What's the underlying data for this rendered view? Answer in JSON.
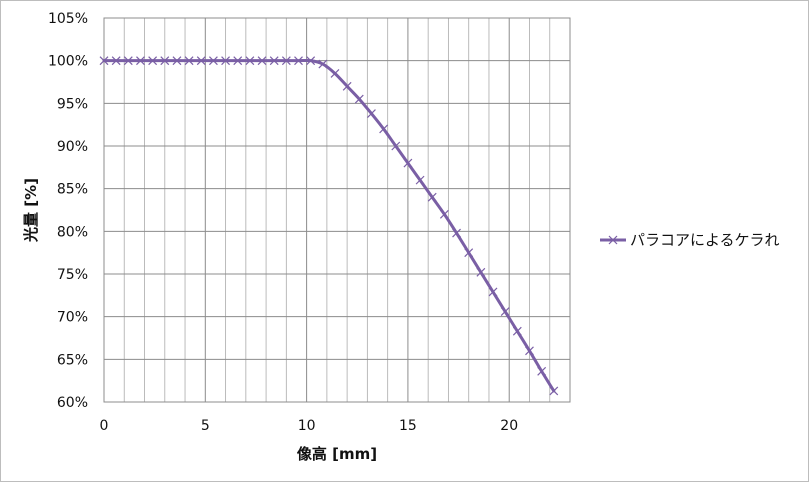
{
  "chart_data": {
    "type": "line",
    "title": "",
    "xlabel": "像高 [mm]",
    "ylabel": "光量 [%]",
    "xlim": [
      0,
      23
    ],
    "ylim": [
      60,
      105
    ],
    "x_ticks": [
      0,
      5,
      10,
      15,
      20
    ],
    "x_tick_labels": [
      "0",
      "5",
      "10",
      "15",
      "20"
    ],
    "y_ticks": [
      60,
      65,
      70,
      75,
      80,
      85,
      90,
      95,
      100,
      105
    ],
    "y_tick_labels": [
      "60%",
      "65%",
      "70%",
      "75%",
      "80%",
      "85%",
      "90%",
      "95%",
      "100%",
      "105%"
    ],
    "x_minor_step": 1,
    "grid": true,
    "legend_position": "right",
    "series": [
      {
        "name": "パラコアによるケラれ",
        "color": "#7a5fa5",
        "marker": "x",
        "x": [
          0,
          0.6,
          1.2,
          1.8,
          2.4,
          3.0,
          3.6,
          4.2,
          4.8,
          5.4,
          6.0,
          6.6,
          7.2,
          7.8,
          8.4,
          9.0,
          9.6,
          10.2,
          10.8,
          11.4,
          12.0,
          12.6,
          13.2,
          13.8,
          14.4,
          15.0,
          15.6,
          16.2,
          16.8,
          17.4,
          18.0,
          18.6,
          19.2,
          19.8,
          20.4,
          21.0,
          21.6,
          22.2
        ],
        "y": [
          100,
          100,
          100,
          100,
          100,
          100,
          100,
          100,
          100,
          100,
          100,
          100,
          100,
          100,
          100,
          100,
          100,
          100,
          99.6,
          98.5,
          97.0,
          95.5,
          93.8,
          92.0,
          90.0,
          88.0,
          86.0,
          84.0,
          82.0,
          79.8,
          77.5,
          75.2,
          72.9,
          70.6,
          68.3,
          66.0,
          63.6,
          61.3
        ]
      }
    ]
  }
}
